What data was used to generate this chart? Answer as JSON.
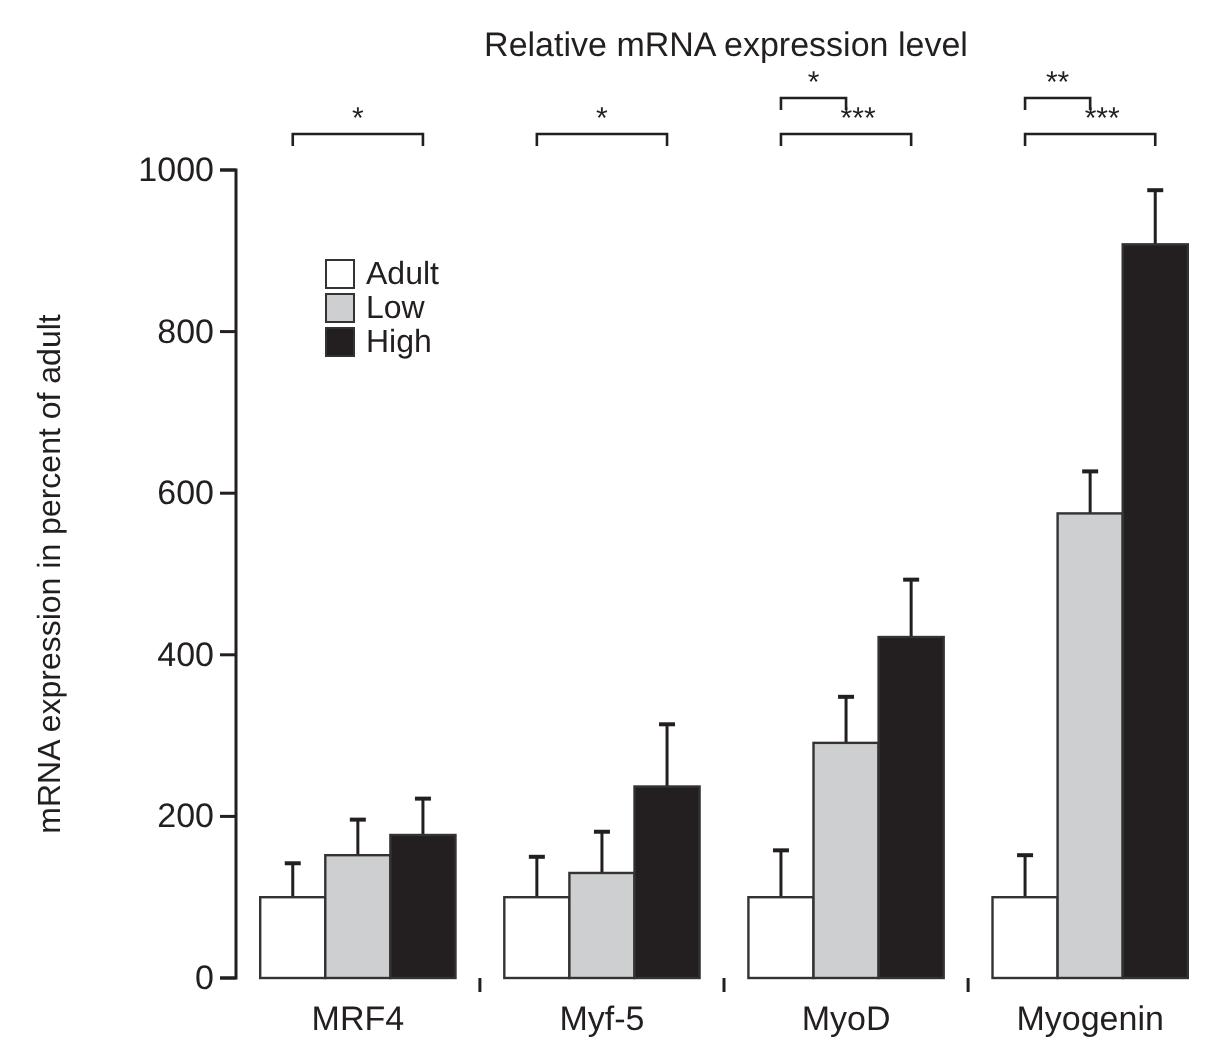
{
  "chart_data": {
    "type": "bar",
    "title": "Relative mRNA expression level",
    "ylabel": "mRNA expression in percent of adult",
    "categories": [
      "MRF4",
      "Myf-5",
      "MyoD",
      "Myogenin"
    ],
    "series": [
      {
        "name": "Adult",
        "color": "#ffffff",
        "values": [
          100,
          100,
          100,
          100
        ],
        "errors": [
          42,
          50,
          58,
          52
        ]
      },
      {
        "name": "Low",
        "color": "#cdcfd1",
        "values": [
          152,
          130,
          291,
          575
        ],
        "errors": [
          44,
          51,
          57,
          52
        ]
      },
      {
        "name": "High",
        "color": "#231f20",
        "values": [
          177,
          237,
          422,
          908
        ],
        "errors": [
          45,
          77,
          71,
          67
        ]
      }
    ],
    "ylim": [
      0,
      1000
    ],
    "yticks": [
      0,
      200,
      400,
      600,
      800,
      1000
    ],
    "grid": false,
    "legend": "top left",
    "annotations": [
      "*",
      "*",
      "*",
      "***",
      "**",
      "***"
    ]
  }
}
